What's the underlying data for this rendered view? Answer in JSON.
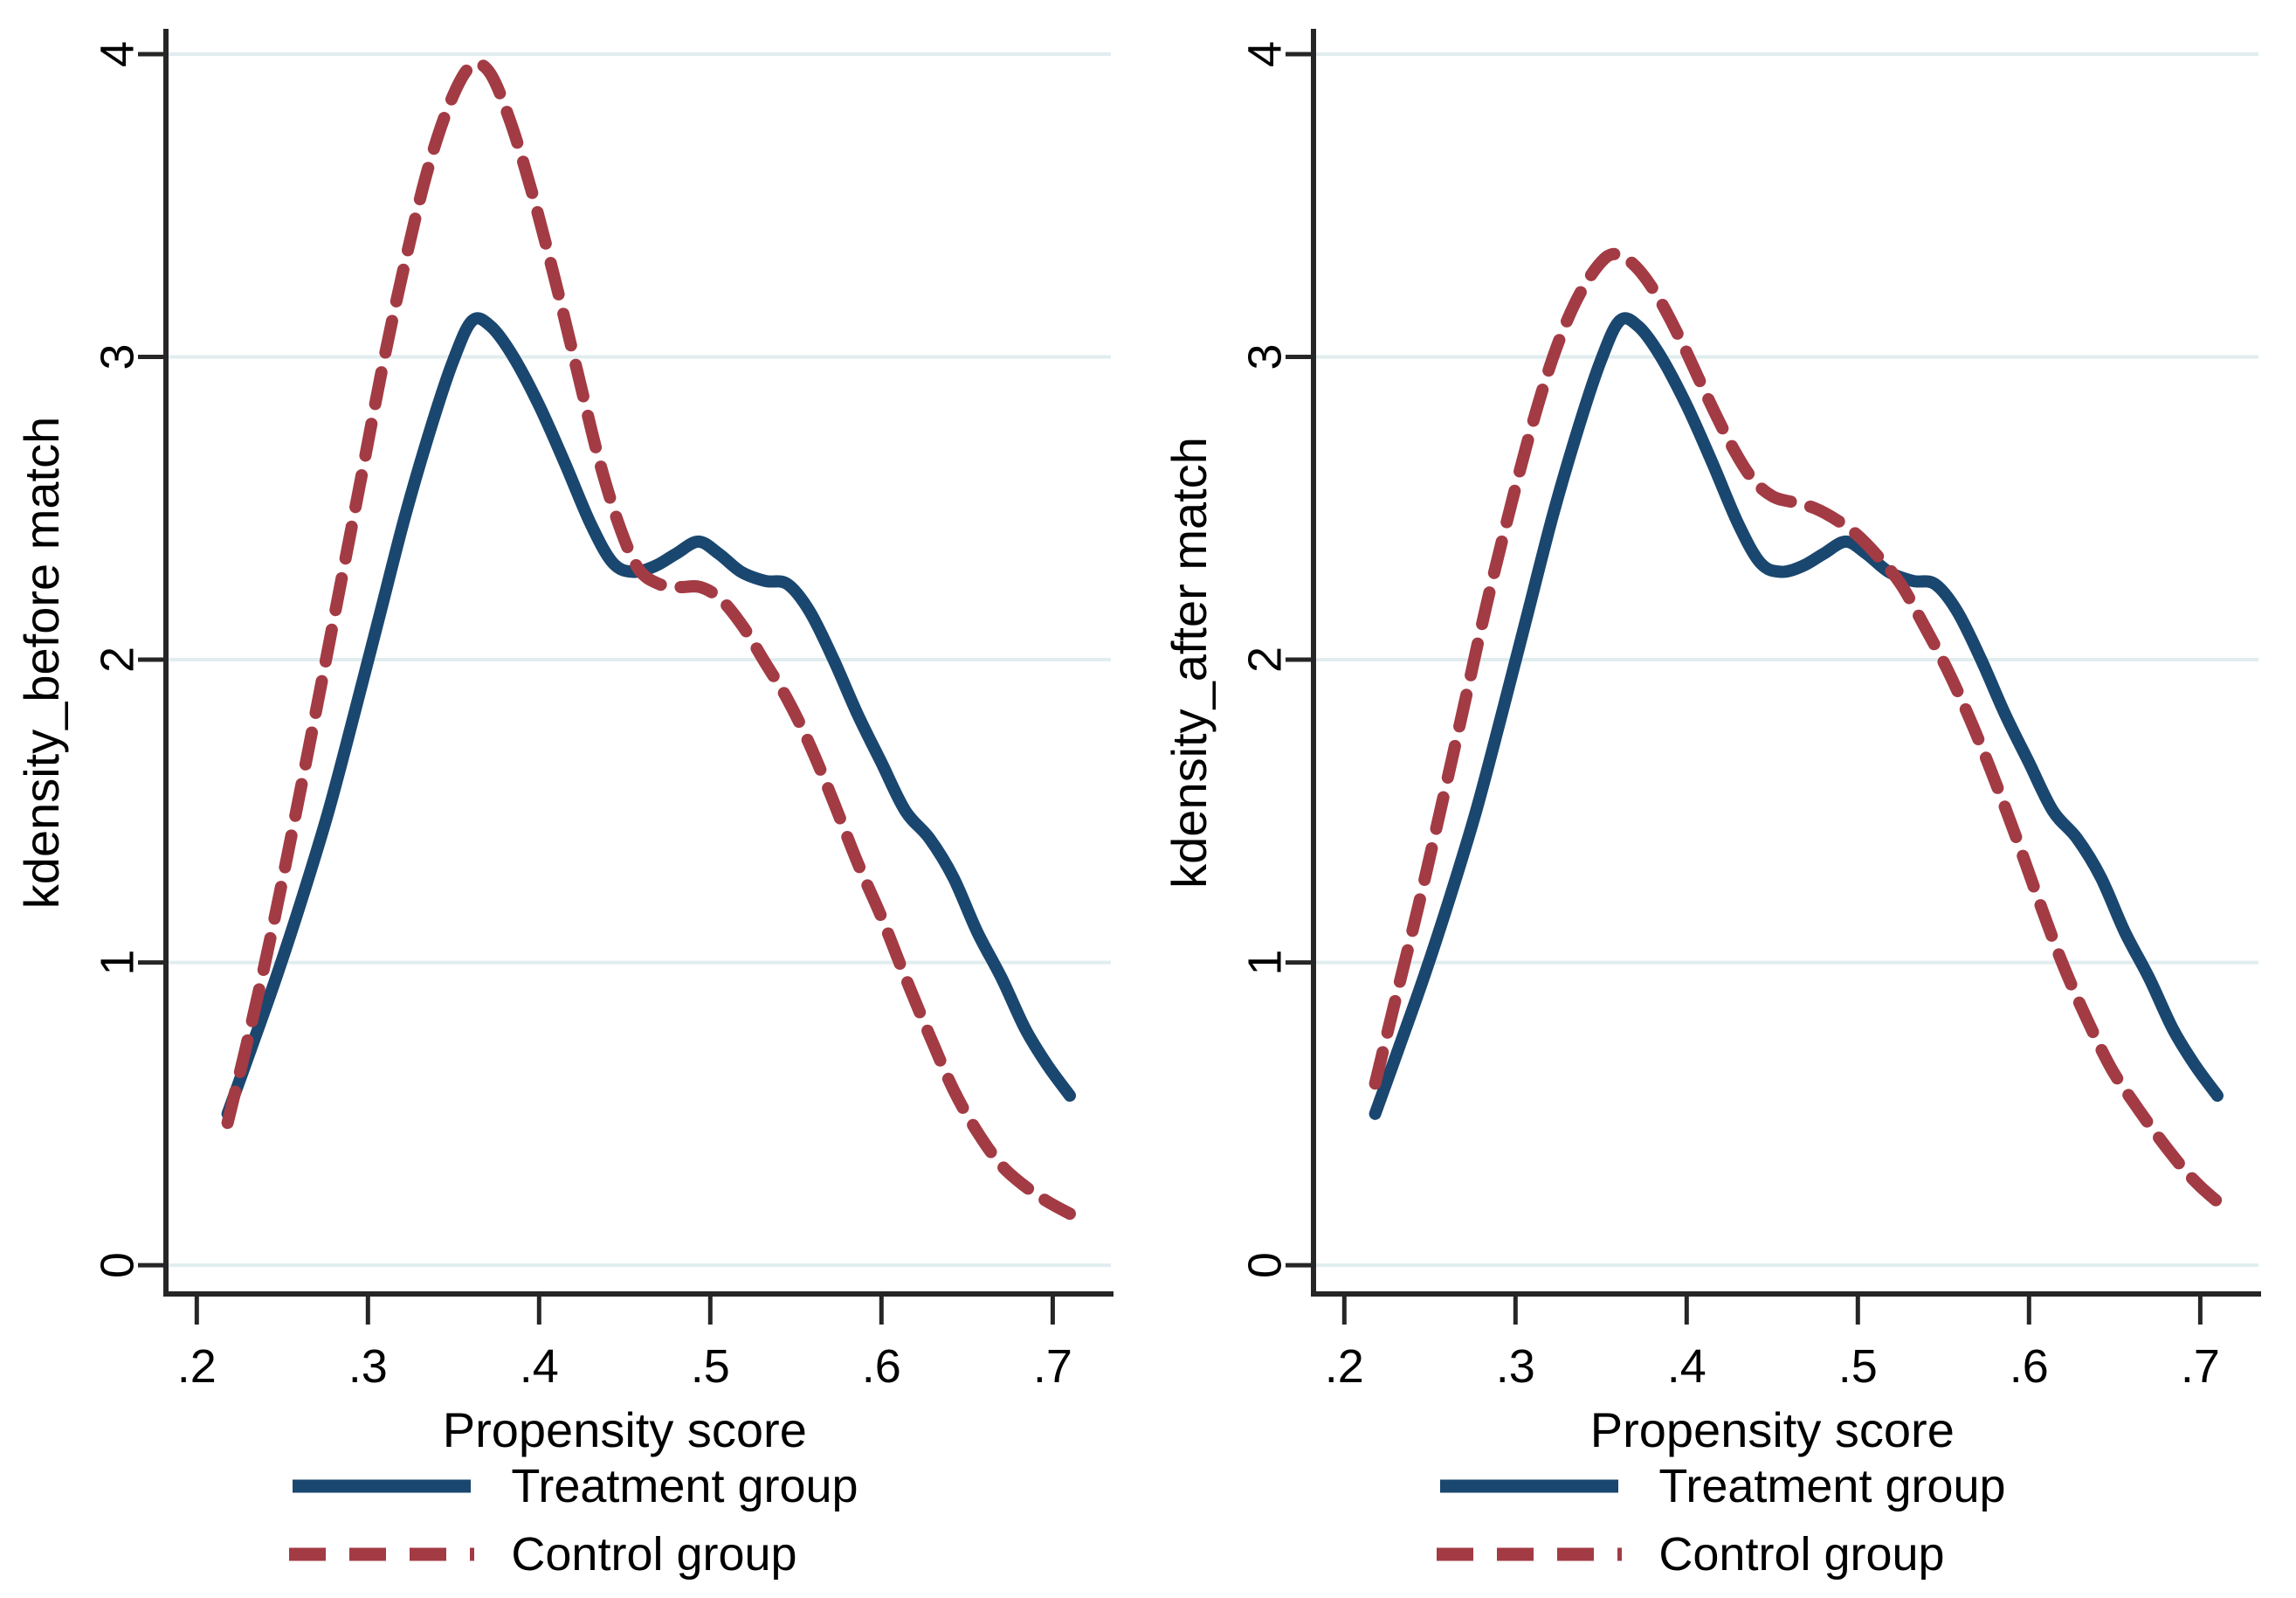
{
  "figure": {
    "colors": {
      "background": "#ffffff",
      "axis": "#262626",
      "grid": "#e1edef",
      "text": "#000000",
      "treatment": "#1a476f",
      "control": "#a33b44"
    }
  },
  "chart_data": [
    {
      "type": "line",
      "panel": "before_match",
      "title": "",
      "xlabel": "Propensity score",
      "ylabel": "kdensity_before match",
      "xlim": [
        0.182,
        0.734
      ],
      "ylim": [
        -0.095,
        4.075
      ],
      "grid": "horizontal",
      "legend_position": "bottom",
      "x_ticks": [
        {
          "v": 0.2,
          "label": ".2"
        },
        {
          "v": 0.3,
          "label": ".3"
        },
        {
          "v": 0.4,
          "label": ".4"
        },
        {
          "v": 0.5,
          "label": ".5"
        },
        {
          "v": 0.6,
          "label": ".6"
        },
        {
          "v": 0.7,
          "label": ".7"
        }
      ],
      "y_ticks": [
        {
          "v": 0,
          "label": "0"
        },
        {
          "v": 1,
          "label": "1"
        },
        {
          "v": 2,
          "label": "2"
        },
        {
          "v": 3,
          "label": "3"
        },
        {
          "v": 4,
          "label": "4"
        }
      ],
      "series": [
        {
          "name": "Treatment group",
          "line": "solid",
          "color": "#1a476f",
          "points": [
            [
              0.218,
              0.5
            ],
            [
              0.232,
              0.72
            ],
            [
              0.247,
              0.96
            ],
            [
              0.262,
              1.22
            ],
            [
              0.277,
              1.5
            ],
            [
              0.292,
              1.82
            ],
            [
              0.307,
              2.15
            ],
            [
              0.322,
              2.48
            ],
            [
              0.337,
              2.77
            ],
            [
              0.35,
              2.99
            ],
            [
              0.361,
              3.12
            ],
            [
              0.372,
              3.1
            ],
            [
              0.385,
              3.0
            ],
            [
              0.4,
              2.84
            ],
            [
              0.415,
              2.65
            ],
            [
              0.43,
              2.45
            ],
            [
              0.443,
              2.32
            ],
            [
              0.455,
              2.29
            ],
            [
              0.468,
              2.31
            ],
            [
              0.48,
              2.35
            ],
            [
              0.493,
              2.39
            ],
            [
              0.505,
              2.35
            ],
            [
              0.518,
              2.29
            ],
            [
              0.532,
              2.26
            ],
            [
              0.545,
              2.25
            ],
            [
              0.558,
              2.16
            ],
            [
              0.572,
              2.0
            ],
            [
              0.586,
              1.82
            ],
            [
              0.6,
              1.66
            ],
            [
              0.614,
              1.5
            ],
            [
              0.628,
              1.41
            ],
            [
              0.642,
              1.28
            ],
            [
              0.656,
              1.1
            ],
            [
              0.67,
              0.95
            ],
            [
              0.684,
              0.78
            ],
            [
              0.697,
              0.66
            ],
            [
              0.71,
              0.56
            ]
          ]
        },
        {
          "name": "Control group",
          "line": "dashed",
          "color": "#a33b44",
          "points": [
            [
              0.218,
              0.47
            ],
            [
              0.23,
              0.75
            ],
            [
              0.243,
              1.08
            ],
            [
              0.256,
              1.44
            ],
            [
              0.27,
              1.84
            ],
            [
              0.283,
              2.22
            ],
            [
              0.296,
              2.6
            ],
            [
              0.309,
              2.98
            ],
            [
              0.322,
              3.32
            ],
            [
              0.335,
              3.62
            ],
            [
              0.348,
              3.84
            ],
            [
              0.36,
              3.96
            ],
            [
              0.371,
              3.94
            ],
            [
              0.383,
              3.78
            ],
            [
              0.396,
              3.54
            ],
            [
              0.409,
              3.26
            ],
            [
              0.422,
              2.96
            ],
            [
              0.435,
              2.66
            ],
            [
              0.447,
              2.44
            ],
            [
              0.458,
              2.3
            ],
            [
              0.47,
              2.25
            ],
            [
              0.482,
              2.24
            ],
            [
              0.494,
              2.24
            ],
            [
              0.506,
              2.2
            ],
            [
              0.519,
              2.11
            ],
            [
              0.532,
              1.99
            ],
            [
              0.545,
              1.87
            ],
            [
              0.558,
              1.72
            ],
            [
              0.572,
              1.53
            ],
            [
              0.586,
              1.33
            ],
            [
              0.6,
              1.15
            ],
            [
              0.614,
              0.95
            ],
            [
              0.628,
              0.76
            ],
            [
              0.642,
              0.58
            ],
            [
              0.656,
              0.44
            ],
            [
              0.67,
              0.33
            ],
            [
              0.684,
              0.26
            ],
            [
              0.697,
              0.21
            ],
            [
              0.71,
              0.17
            ]
          ]
        }
      ]
    },
    {
      "type": "line",
      "panel": "after_match",
      "title": "",
      "xlabel": "Propensity score",
      "ylabel": "kdensity_after match",
      "xlim": [
        0.182,
        0.734
      ],
      "ylim": [
        -0.095,
        4.075
      ],
      "grid": "horizontal",
      "legend_position": "bottom",
      "x_ticks": [
        {
          "v": 0.2,
          "label": ".2"
        },
        {
          "v": 0.3,
          "label": ".3"
        },
        {
          "v": 0.4,
          "label": ".4"
        },
        {
          "v": 0.5,
          "label": ".5"
        },
        {
          "v": 0.6,
          "label": ".6"
        },
        {
          "v": 0.7,
          "label": ".7"
        }
      ],
      "y_ticks": [
        {
          "v": 0,
          "label": "0"
        },
        {
          "v": 1,
          "label": "1"
        },
        {
          "v": 2,
          "label": "2"
        },
        {
          "v": 3,
          "label": "3"
        },
        {
          "v": 4,
          "label": "4"
        }
      ],
      "series": [
        {
          "name": "Treatment group",
          "line": "solid",
          "color": "#1a476f",
          "points": [
            [
              0.218,
              0.5
            ],
            [
              0.232,
              0.72
            ],
            [
              0.247,
              0.96
            ],
            [
              0.262,
              1.22
            ],
            [
              0.277,
              1.5
            ],
            [
              0.292,
              1.82
            ],
            [
              0.307,
              2.15
            ],
            [
              0.322,
              2.48
            ],
            [
              0.337,
              2.77
            ],
            [
              0.35,
              2.99
            ],
            [
              0.361,
              3.12
            ],
            [
              0.372,
              3.1
            ],
            [
              0.385,
              3.0
            ],
            [
              0.4,
              2.84
            ],
            [
              0.415,
              2.65
            ],
            [
              0.43,
              2.45
            ],
            [
              0.443,
              2.32
            ],
            [
              0.455,
              2.29
            ],
            [
              0.468,
              2.31
            ],
            [
              0.48,
              2.35
            ],
            [
              0.493,
              2.39
            ],
            [
              0.505,
              2.35
            ],
            [
              0.518,
              2.29
            ],
            [
              0.532,
              2.26
            ],
            [
              0.545,
              2.25
            ],
            [
              0.558,
              2.16
            ],
            [
              0.572,
              2.0
            ],
            [
              0.586,
              1.82
            ],
            [
              0.6,
              1.66
            ],
            [
              0.614,
              1.5
            ],
            [
              0.628,
              1.41
            ],
            [
              0.642,
              1.28
            ],
            [
              0.656,
              1.1
            ],
            [
              0.67,
              0.95
            ],
            [
              0.684,
              0.78
            ],
            [
              0.697,
              0.66
            ],
            [
              0.71,
              0.56
            ]
          ]
        },
        {
          "name": "Control group",
          "line": "dashed",
          "color": "#a33b44",
          "points": [
            [
              0.218,
              0.6
            ],
            [
              0.23,
              0.88
            ],
            [
              0.243,
              1.18
            ],
            [
              0.256,
              1.5
            ],
            [
              0.27,
              1.85
            ],
            [
              0.283,
              2.18
            ],
            [
              0.296,
              2.48
            ],
            [
              0.309,
              2.76
            ],
            [
              0.322,
              3.0
            ],
            [
              0.335,
              3.18
            ],
            [
              0.348,
              3.3
            ],
            [
              0.358,
              3.34
            ],
            [
              0.37,
              3.3
            ],
            [
              0.383,
              3.2
            ],
            [
              0.397,
              3.05
            ],
            [
              0.411,
              2.88
            ],
            [
              0.425,
              2.72
            ],
            [
              0.438,
              2.6
            ],
            [
              0.45,
              2.54
            ],
            [
              0.462,
              2.52
            ],
            [
              0.475,
              2.5
            ],
            [
              0.488,
              2.46
            ],
            [
              0.5,
              2.41
            ],
            [
              0.512,
              2.34
            ],
            [
              0.525,
              2.25
            ],
            [
              0.538,
              2.12
            ],
            [
              0.552,
              1.97
            ],
            [
              0.565,
              1.81
            ],
            [
              0.578,
              1.63
            ],
            [
              0.592,
              1.42
            ],
            [
              0.606,
              1.2
            ],
            [
              0.62,
              0.99
            ],
            [
              0.634,
              0.81
            ],
            [
              0.648,
              0.65
            ],
            [
              0.662,
              0.53
            ],
            [
              0.676,
              0.42
            ],
            [
              0.69,
              0.32
            ],
            [
              0.7,
              0.26
            ],
            [
              0.71,
              0.21
            ]
          ]
        }
      ]
    }
  ]
}
